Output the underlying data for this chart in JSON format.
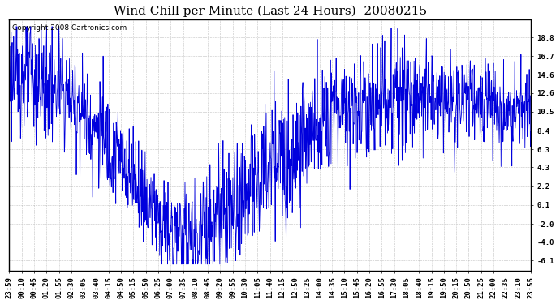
{
  "title": "Wind Chill per Minute (Last 24 Hours)  20080215",
  "copyright_text": "Copyright 2008 Cartronics.com",
  "line_color": "#0000dd",
  "bg_color": "#ffffff",
  "grid_color": "#bbbbbb",
  "yticks": [
    18.8,
    16.7,
    14.6,
    12.6,
    10.5,
    8.4,
    6.3,
    4.3,
    2.2,
    0.1,
    -2.0,
    -4.0,
    -6.1
  ],
  "ylim": [
    -7.2,
    20.8
  ],
  "xtick_labels": [
    "23:59",
    "00:10",
    "00:45",
    "01:20",
    "01:55",
    "02:30",
    "03:05",
    "03:40",
    "04:15",
    "04:50",
    "05:15",
    "05:50",
    "06:25",
    "07:00",
    "07:35",
    "08:10",
    "08:45",
    "09:20",
    "09:55",
    "10:30",
    "11:05",
    "11:40",
    "12:15",
    "12:50",
    "13:25",
    "14:00",
    "14:35",
    "15:10",
    "15:45",
    "16:20",
    "16:55",
    "17:30",
    "18:05",
    "18:40",
    "19:15",
    "19:50",
    "20:15",
    "20:50",
    "21:25",
    "22:00",
    "22:35",
    "23:10",
    "23:55"
  ],
  "title_fontsize": 11,
  "tick_fontsize": 6.5,
  "copyright_fontsize": 6.5,
  "seed": 123
}
